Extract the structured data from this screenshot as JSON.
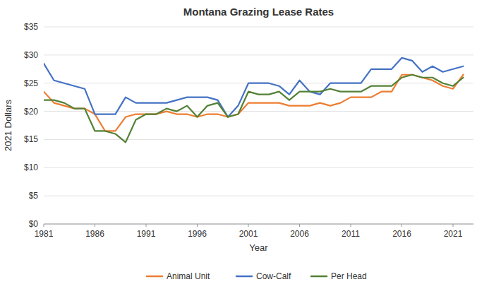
{
  "chart_data": {
    "type": "line",
    "title": "Montana Grazing Lease Rates",
    "xlabel": "Year",
    "ylabel": "2021 Dollars",
    "x": [
      1981,
      1982,
      1983,
      1984,
      1985,
      1986,
      1987,
      1988,
      1989,
      1990,
      1991,
      1992,
      1993,
      1994,
      1995,
      1996,
      1997,
      1998,
      1999,
      2000,
      2001,
      2002,
      2003,
      2004,
      2005,
      2006,
      2007,
      2008,
      2009,
      2010,
      2011,
      2012,
      2013,
      2014,
      2015,
      2016,
      2017,
      2018,
      2019,
      2020,
      2021,
      2022
    ],
    "series": [
      {
        "name": "Animal Unit",
        "color": "#ED7D31",
        "values": [
          23.5,
          21.5,
          21.0,
          20.5,
          20.5,
          19.5,
          16.5,
          16.5,
          19.0,
          19.5,
          19.5,
          19.5,
          20.0,
          19.5,
          19.5,
          19.0,
          19.5,
          19.5,
          19.0,
          19.5,
          21.5,
          21.5,
          21.5,
          21.5,
          21.0,
          21.0,
          21.0,
          21.5,
          21.0,
          21.5,
          22.5,
          22.5,
          22.5,
          23.5,
          23.5,
          26.5,
          26.5,
          26.0,
          25.5,
          24.5,
          24.0,
          26.5
        ]
      },
      {
        "name": "Cow-Calf",
        "color": "#4472C4",
        "values": [
          28.5,
          25.5,
          25.0,
          24.5,
          24.0,
          19.5,
          19.5,
          19.5,
          22.5,
          21.5,
          21.5,
          21.5,
          21.5,
          22.0,
          22.5,
          22.5,
          22.5,
          22.0,
          19.0,
          21.0,
          25.0,
          25.0,
          25.0,
          24.5,
          23.0,
          25.5,
          23.5,
          23.0,
          25.0,
          25.0,
          25.0,
          25.0,
          27.5,
          27.5,
          27.5,
          29.5,
          29.0,
          27.0,
          28.0,
          27.0,
          27.5,
          28.0
        ]
      },
      {
        "name": "Per Head",
        "color": "#538135",
        "values": [
          22.0,
          22.0,
          21.5,
          20.5,
          20.5,
          16.5,
          16.5,
          16.0,
          14.5,
          18.5,
          19.5,
          19.5,
          20.5,
          20.0,
          21.0,
          19.0,
          21.0,
          21.5,
          19.0,
          19.5,
          23.5,
          23.0,
          23.0,
          23.5,
          22.0,
          23.5,
          23.5,
          23.5,
          24.0,
          23.5,
          23.5,
          23.5,
          24.5,
          24.5,
          24.5,
          26.0,
          26.5,
          26.0,
          26.0,
          25.0,
          24.5,
          26.0
        ]
      }
    ],
    "xlim": [
      1981,
      2023
    ],
    "ylim": [
      0,
      35
    ],
    "xticks": [
      1981,
      1986,
      1991,
      1996,
      2001,
      2006,
      2011,
      2016,
      2021
    ],
    "yticks": [
      {
        "value": 0,
        "label": "$0"
      },
      {
        "value": 5,
        "label": "$5"
      },
      {
        "value": 10,
        "label": "$10"
      },
      {
        "value": 15,
        "label": "$15"
      },
      {
        "value": 20,
        "label": "$20"
      },
      {
        "value": 25,
        "label": "$25"
      },
      {
        "value": 30,
        "label": "$30"
      },
      {
        "value": 35,
        "label": "$35"
      }
    ],
    "grid": true,
    "legend": "bottom"
  }
}
